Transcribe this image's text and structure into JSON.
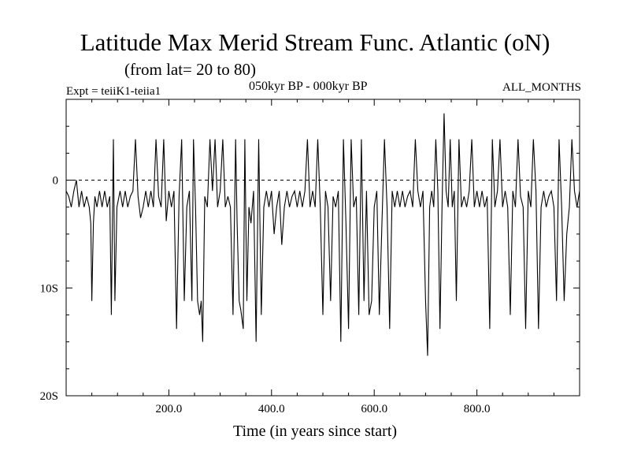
{
  "title": "Latitude Max Merid Stream Func. Atlantic (oN)",
  "subtitle": "(from lat= 20 to 80)",
  "experiment": "Expt = teiiK1-teiia1",
  "period": "050kyr BP - 000kyr BP",
  "months": "ALL_MONTHS",
  "chart_data": {
    "type": "line",
    "title": "Latitude Max Merid Stream Func. Atlantic (oN)",
    "xlabel": "Time (in years since start)",
    "ylabel": "",
    "xlim": [
      0,
      1000
    ],
    "ylim": [
      -20,
      7.5
    ],
    "x_ticks": [
      200,
      400,
      600,
      800
    ],
    "x_tick_labels": [
      "200.0",
      "400.0",
      "600.0",
      "800.0"
    ],
    "y_ticks": [
      0,
      -10,
      -20
    ],
    "y_tick_labels": [
      "0",
      "10S",
      "20S"
    ],
    "reference_line": 0,
    "grid": false,
    "series": [
      {
        "values": [
          [
            0,
            -1
          ],
          [
            5,
            -1.5
          ],
          [
            10,
            -2.5
          ],
          [
            15,
            -1
          ],
          [
            20,
            0
          ],
          [
            25,
            -2.5
          ],
          [
            30,
            -1
          ],
          [
            35,
            -2.5
          ],
          [
            40,
            -1.5
          ],
          [
            45,
            -2.5
          ],
          [
            48,
            -4
          ],
          [
            50,
            -11.2
          ],
          [
            53,
            -4
          ],
          [
            56,
            -1.5
          ],
          [
            60,
            -2.5
          ],
          [
            65,
            -1
          ],
          [
            70,
            -2.5
          ],
          [
            75,
            -1
          ],
          [
            80,
            -2.5
          ],
          [
            85,
            -1.5
          ],
          [
            88,
            -12.5
          ],
          [
            92,
            3.8
          ],
          [
            95,
            -11.2
          ],
          [
            99,
            -2.5
          ],
          [
            105,
            -1
          ],
          [
            110,
            -2.5
          ],
          [
            115,
            -1
          ],
          [
            120,
            -2.5
          ],
          [
            125,
            -1.5
          ],
          [
            130,
            -1
          ],
          [
            135,
            3.8
          ],
          [
            140,
            -1.5
          ],
          [
            145,
            -3.5
          ],
          [
            150,
            -2.5
          ],
          [
            155,
            -1
          ],
          [
            160,
            -2.5
          ],
          [
            165,
            -1
          ],
          [
            170,
            -2.5
          ],
          [
            175,
            3.8
          ],
          [
            180,
            -1.5
          ],
          [
            185,
            -2.5
          ],
          [
            190,
            3.8
          ],
          [
            195,
            -3.8
          ],
          [
            200,
            -1
          ],
          [
            205,
            -2.5
          ],
          [
            210,
            -1
          ],
          [
            215,
            -13.8
          ],
          [
            220,
            -1.5
          ],
          [
            225,
            3.8
          ],
          [
            230,
            -11.2
          ],
          [
            235,
            -2.5
          ],
          [
            240,
            -1
          ],
          [
            245,
            -11.2
          ],
          [
            248,
            3.8
          ],
          [
            252,
            -2.5
          ],
          [
            256,
            -11.2
          ],
          [
            260,
            -12.5
          ],
          [
            263,
            -11.2
          ],
          [
            266,
            -15
          ],
          [
            270,
            -1.5
          ],
          [
            275,
            -2.5
          ],
          [
            280,
            3.8
          ],
          [
            285,
            -1
          ],
          [
            290,
            3.8
          ],
          [
            295,
            -2.5
          ],
          [
            300,
            -1
          ],
          [
            305,
            3.8
          ],
          [
            310,
            -2.5
          ],
          [
            315,
            -1.5
          ],
          [
            320,
            -2.5
          ],
          [
            325,
            -12.5
          ],
          [
            330,
            3.8
          ],
          [
            333,
            -4
          ],
          [
            337,
            -11.2
          ],
          [
            340,
            -12
          ],
          [
            345,
            -13.8
          ],
          [
            348,
            3.8
          ],
          [
            352,
            -11.2
          ],
          [
            356,
            -2.5
          ],
          [
            360,
            -4
          ],
          [
            365,
            -1
          ],
          [
            370,
            -15
          ],
          [
            375,
            3.8
          ],
          [
            380,
            -12.5
          ],
          [
            385,
            -2.5
          ],
          [
            390,
            -1
          ],
          [
            395,
            -2.5
          ],
          [
            400,
            -1
          ],
          [
            405,
            -5
          ],
          [
            410,
            -2.5
          ],
          [
            415,
            -1
          ],
          [
            420,
            -6
          ],
          [
            425,
            -2.5
          ],
          [
            430,
            -1
          ],
          [
            435,
            -2.5
          ],
          [
            440,
            -1.5
          ],
          [
            445,
            -1
          ],
          [
            450,
            -2.5
          ],
          [
            455,
            -1
          ],
          [
            460,
            -2.5
          ],
          [
            465,
            -1
          ],
          [
            470,
            3.8
          ],
          [
            475,
            -2.5
          ],
          [
            480,
            -1
          ],
          [
            485,
            -2.5
          ],
          [
            490,
            3.8
          ],
          [
            495,
            -2.5
          ],
          [
            500,
            -12.5
          ],
          [
            505,
            -1
          ],
          [
            510,
            -2.5
          ],
          [
            515,
            -11.2
          ],
          [
            520,
            -1.5
          ],
          [
            525,
            -2.5
          ],
          [
            530,
            -1
          ],
          [
            535,
            -15
          ],
          [
            540,
            3.8
          ],
          [
            545,
            -4
          ],
          [
            550,
            -13.8
          ],
          [
            555,
            3.8
          ],
          [
            560,
            -2.5
          ],
          [
            565,
            -1.5
          ],
          [
            570,
            -12.5
          ],
          [
            575,
            3.8
          ],
          [
            580,
            -11.2
          ],
          [
            585,
            -1
          ],
          [
            590,
            -12.5
          ],
          [
            595,
            -11.2
          ],
          [
            600,
            -2.5
          ],
          [
            605,
            -1
          ],
          [
            610,
            -12.5
          ],
          [
            615,
            -4
          ],
          [
            620,
            3.8
          ],
          [
            625,
            -2.5
          ],
          [
            630,
            -13.8
          ],
          [
            635,
            -1
          ],
          [
            640,
            -2.5
          ],
          [
            645,
            -1
          ],
          [
            650,
            -2.5
          ],
          [
            655,
            -1
          ],
          [
            660,
            -2.5
          ],
          [
            665,
            -1.5
          ],
          [
            670,
            -1
          ],
          [
            675,
            -2.5
          ],
          [
            680,
            3.8
          ],
          [
            685,
            -1
          ],
          [
            690,
            -2.5
          ],
          [
            695,
            -1
          ],
          [
            700,
            -11.2
          ],
          [
            704,
            -16.3
          ],
          [
            708,
            -2.5
          ],
          [
            712,
            -1
          ],
          [
            716,
            -2.5
          ],
          [
            720,
            3.8
          ],
          [
            724,
            -1
          ],
          [
            728,
            -13.8
          ],
          [
            732,
            -2.5
          ],
          [
            736,
            6.2
          ],
          [
            740,
            -1
          ],
          [
            744,
            -2.5
          ],
          [
            748,
            3.8
          ],
          [
            752,
            -2.5
          ],
          [
            756,
            -1
          ],
          [
            760,
            -11.2
          ],
          [
            765,
            3.8
          ],
          [
            770,
            -2.5
          ],
          [
            775,
            -1.5
          ],
          [
            780,
            -2.5
          ],
          [
            785,
            -1
          ],
          [
            790,
            3.8
          ],
          [
            795,
            -2.5
          ],
          [
            800,
            -1
          ],
          [
            805,
            -2.5
          ],
          [
            810,
            -1
          ],
          [
            815,
            -2.5
          ],
          [
            820,
            -1.5
          ],
          [
            825,
            -13.8
          ],
          [
            830,
            3.8
          ],
          [
            835,
            -2.5
          ],
          [
            840,
            -1
          ],
          [
            845,
            3.8
          ],
          [
            850,
            -2.5
          ],
          [
            855,
            -1
          ],
          [
            860,
            -2.5
          ],
          [
            865,
            -12.5
          ],
          [
            870,
            -1
          ],
          [
            875,
            -2.5
          ],
          [
            880,
            3.8
          ],
          [
            885,
            -1.5
          ],
          [
            890,
            -2.5
          ],
          [
            895,
            -13.8
          ],
          [
            900,
            -1
          ],
          [
            905,
            -2.5
          ],
          [
            910,
            3.8
          ],
          [
            915,
            -1
          ],
          [
            920,
            -13.8
          ],
          [
            925,
            -2.5
          ],
          [
            930,
            -1
          ],
          [
            935,
            -2.5
          ],
          [
            940,
            -1.5
          ],
          [
            945,
            -1
          ],
          [
            950,
            -2.5
          ],
          [
            955,
            -11.2
          ],
          [
            960,
            3.8
          ],
          [
            965,
            -2.5
          ],
          [
            970,
            -11.2
          ],
          [
            975,
            -5
          ],
          [
            980,
            -2.5
          ],
          [
            985,
            3.8
          ],
          [
            990,
            -1
          ],
          [
            995,
            -2.5
          ],
          [
            1000,
            -1
          ]
        ]
      }
    ]
  }
}
